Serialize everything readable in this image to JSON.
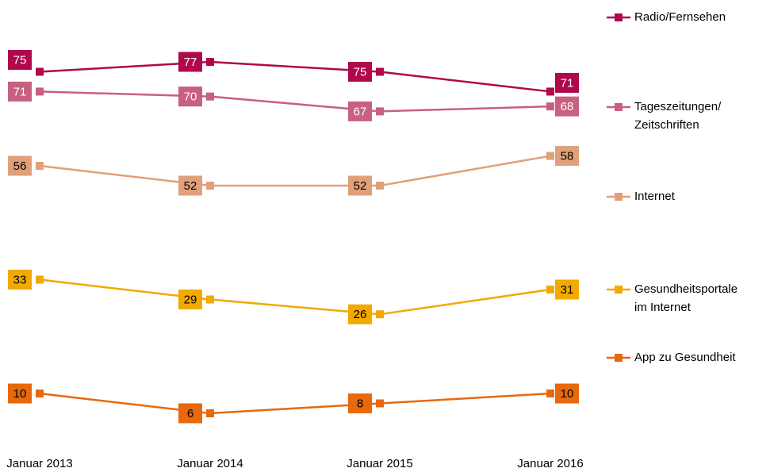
{
  "chart_data": {
    "type": "line",
    "categories": [
      "Januar 2013",
      "Januar 2014",
      "Januar 2015",
      "Januar 2016"
    ],
    "series": [
      {
        "name": "Radio/Fernsehen",
        "color": "#b0084a",
        "values": [
          75,
          77,
          75,
          71
        ]
      },
      {
        "name": "Tageszeitungen/\nZeitschriften",
        "color": "#c8607f",
        "values": [
          71,
          70,
          67,
          68
        ]
      },
      {
        "name": "Internet",
        "color": "#e0a07a",
        "values": [
          56,
          52,
          52,
          58
        ]
      },
      {
        "name": "Gesundheitsportale\nim Internet",
        "color": "#f2a900",
        "values": [
          33,
          29,
          26,
          31
        ]
      },
      {
        "name": "App zu Gesundheit",
        "color": "#e8680c",
        "values": [
          10,
          6,
          8,
          10
        ]
      }
    ]
  }
}
